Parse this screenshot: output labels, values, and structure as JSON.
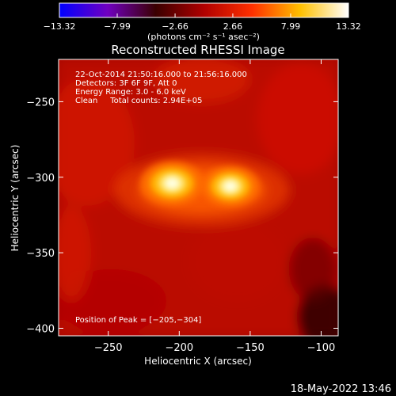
{
  "chart_data": {
    "type": "heatmap",
    "title": "Reconstructed RHESSI Image",
    "xlabel": "Heliocentric X (arcsec)",
    "ylabel": "Heliocentric Y (arcsec)",
    "xlim": [
      -285,
      -88
    ],
    "ylim": [
      -405,
      -222
    ],
    "xticks": [
      -250,
      -200,
      -150,
      -100
    ],
    "xtick_labels": [
      "−250",
      "−200",
      "−150",
      "−100"
    ],
    "yticks": [
      -250,
      -300,
      -350,
      -400
    ],
    "ytick_labels": [
      "−250",
      "−300",
      "−350",
      "−400"
    ],
    "colorbar": {
      "colormap": "RHESSI red-temperature",
      "range": [
        -13.32,
        13.32
      ],
      "ticks": [
        -13.32,
        -7.99,
        -2.66,
        2.66,
        7.99,
        13.32
      ],
      "tick_labels": [
        "−13.32",
        "−7.99",
        "−2.66",
        "2.66",
        "7.99",
        "13.32"
      ],
      "unit_label": "(photons cm⁻² s⁻¹ asec⁻²)",
      "colors": [
        "#0000ff",
        "#7000c0",
        "#3a0000",
        "#b00000",
        "#ff3000",
        "#ffc000",
        "#ffffff"
      ]
    },
    "sources": [
      {
        "x": -205,
        "y": -304,
        "relative_peak": 1.0
      },
      {
        "x": -164,
        "y": -306,
        "relative_peak": 0.9
      }
    ],
    "annotations": [
      "22-Oct-2014 21:50:16.000 to 21:56:16.000",
      "Detectors: 3F 6F 9F, Att 0",
      "Energy Range: 3.0 - 6.0 keV",
      "Clean     Total counts: 2.94E+05",
      "Position of Peak = [−205,−304]"
    ],
    "grid": false
  },
  "footer": {
    "timestamp": "18-May-2022 13:46"
  }
}
